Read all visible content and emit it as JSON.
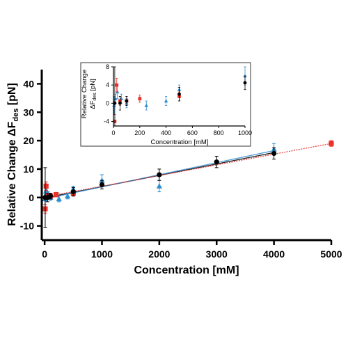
{
  "chart_data": [
    {
      "type": "scatter",
      "xlabel": "Concentration [mM]",
      "ylabel_prefix": "Relative Change ΔF",
      "ylabel_sub": "des",
      "ylabel_suffix": " [pN]",
      "xlim": [
        -50,
        5000
      ],
      "ylim": [
        -15,
        45
      ],
      "xticks": [
        0,
        1000,
        2000,
        3000,
        4000,
        5000
      ],
      "yticks": [
        -10,
        0,
        10,
        20,
        30,
        40
      ],
      "grid": false,
      "colors": {
        "black": "#000000",
        "red": "#e8322b",
        "blue": "#2e8ccf"
      },
      "series": [
        {
          "color": "black",
          "marker": "circle",
          "points": [
            {
              "x": 10,
              "y": 0,
              "err": 10.5
            },
            {
              "x": 50,
              "y": 0,
              "err": 1.5
            },
            {
              "x": 100,
              "y": 0.5,
              "err": 1
            },
            {
              "x": 500,
              "y": 2,
              "err": 1.5
            },
            {
              "x": 1000,
              "y": 4.5,
              "err": 1.5
            },
            {
              "x": 2000,
              "y": 8,
              "err": 2
            },
            {
              "x": 3000,
              "y": 12.5,
              "err": 2
            },
            {
              "x": 4000,
              "y": 15.5,
              "err": 2
            }
          ]
        },
        {
          "color": "red",
          "marker": "square",
          "points": [
            {
              "x": 10,
              "y": -4,
              "err": 1.5
            },
            {
              "x": 25,
              "y": 4,
              "err": 1.5
            },
            {
              "x": 50,
              "y": 0.5,
              "err": 1
            },
            {
              "x": 100,
              "y": 0.5,
              "err": 1
            },
            {
              "x": 200,
              "y": 1,
              "err": 0.8
            },
            {
              "x": 500,
              "y": 1.5,
              "err": 1
            },
            {
              "x": 5000,
              "y": 19,
              "err": 1
            }
          ]
        },
        {
          "color": "blue",
          "marker": "triangle",
          "points": [
            {
              "x": 5,
              "y": -0.5,
              "err": 2
            },
            {
              "x": 15,
              "y": 1,
              "err": 1
            },
            {
              "x": 30,
              "y": 2.5,
              "err": 1.5
            },
            {
              "x": 60,
              "y": 1,
              "err": 1
            },
            {
              "x": 100,
              "y": 0,
              "err": 1
            },
            {
              "x": 250,
              "y": -0.5,
              "err": 1
            },
            {
              "x": 400,
              "y": 0.5,
              "err": 1
            },
            {
              "x": 500,
              "y": 3,
              "err": 1
            },
            {
              "x": 1000,
              "y": 6,
              "err": 2
            },
            {
              "x": 2000,
              "y": 4,
              "err": 2
            },
            {
              "x": 4000,
              "y": 17,
              "err": 2
            }
          ]
        }
      ],
      "fit_lines": [
        {
          "color": "black",
          "from": [
            0,
            -0.2
          ],
          "to": [
            4000,
            15.8
          ]
        },
        {
          "color": "blue",
          "from": [
            0,
            -0.5
          ],
          "to": [
            4000,
            16.5
          ]
        },
        {
          "color": "red",
          "from": [
            0,
            0.2
          ],
          "to": [
            5000,
            19
          ]
        }
      ]
    },
    {
      "type": "scatter",
      "inset": true,
      "xlabel": "Concentration [mM]",
      "ylabel_line1": "Relative Change",
      "ylabel_prefix": "ΔF",
      "ylabel_sub": "des",
      "ylabel_suffix": " [pN]",
      "xlim": [
        0,
        1000
      ],
      "ylim": [
        -5,
        8
      ],
      "xticks": [
        0,
        200,
        400,
        600,
        800,
        1000
      ],
      "yticks": [
        -4,
        0,
        4,
        8
      ],
      "grid": false
    }
  ]
}
